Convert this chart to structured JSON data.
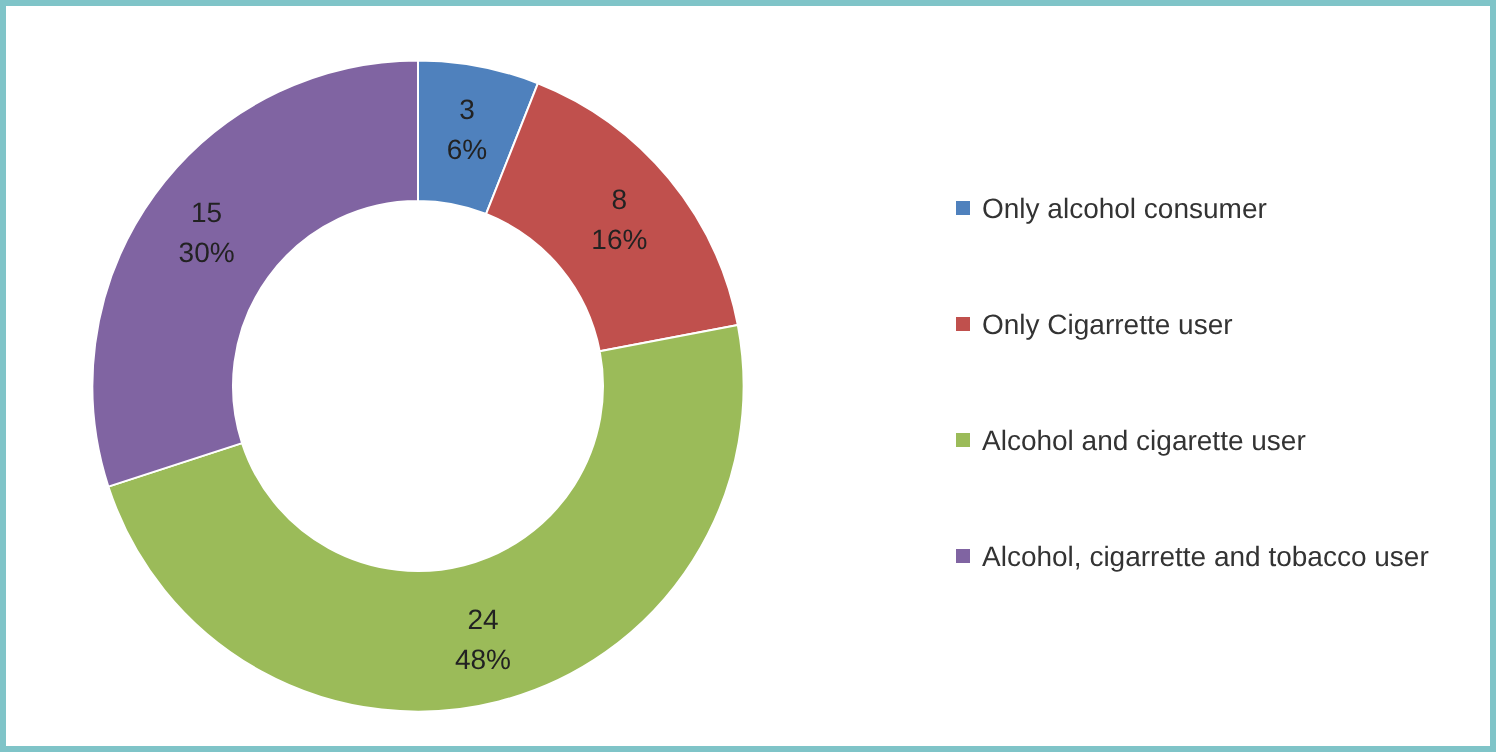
{
  "chart_data": {
    "type": "donut",
    "categories": [
      "Only alcohol consumer",
      "Only Cigarrette user",
      "Alcohol and cigarette user",
      "Alcohol, cigarrette and tobacco user"
    ],
    "values": [
      3,
      8,
      24,
      15
    ],
    "colors": [
      "#4f81bd",
      "#c0504d",
      "#9bbb59",
      "#8064a2"
    ],
    "value_labels": [
      "3\n6%",
      "8\n16%",
      "24\n48%",
      "15\n30%"
    ],
    "legend": "right"
  }
}
